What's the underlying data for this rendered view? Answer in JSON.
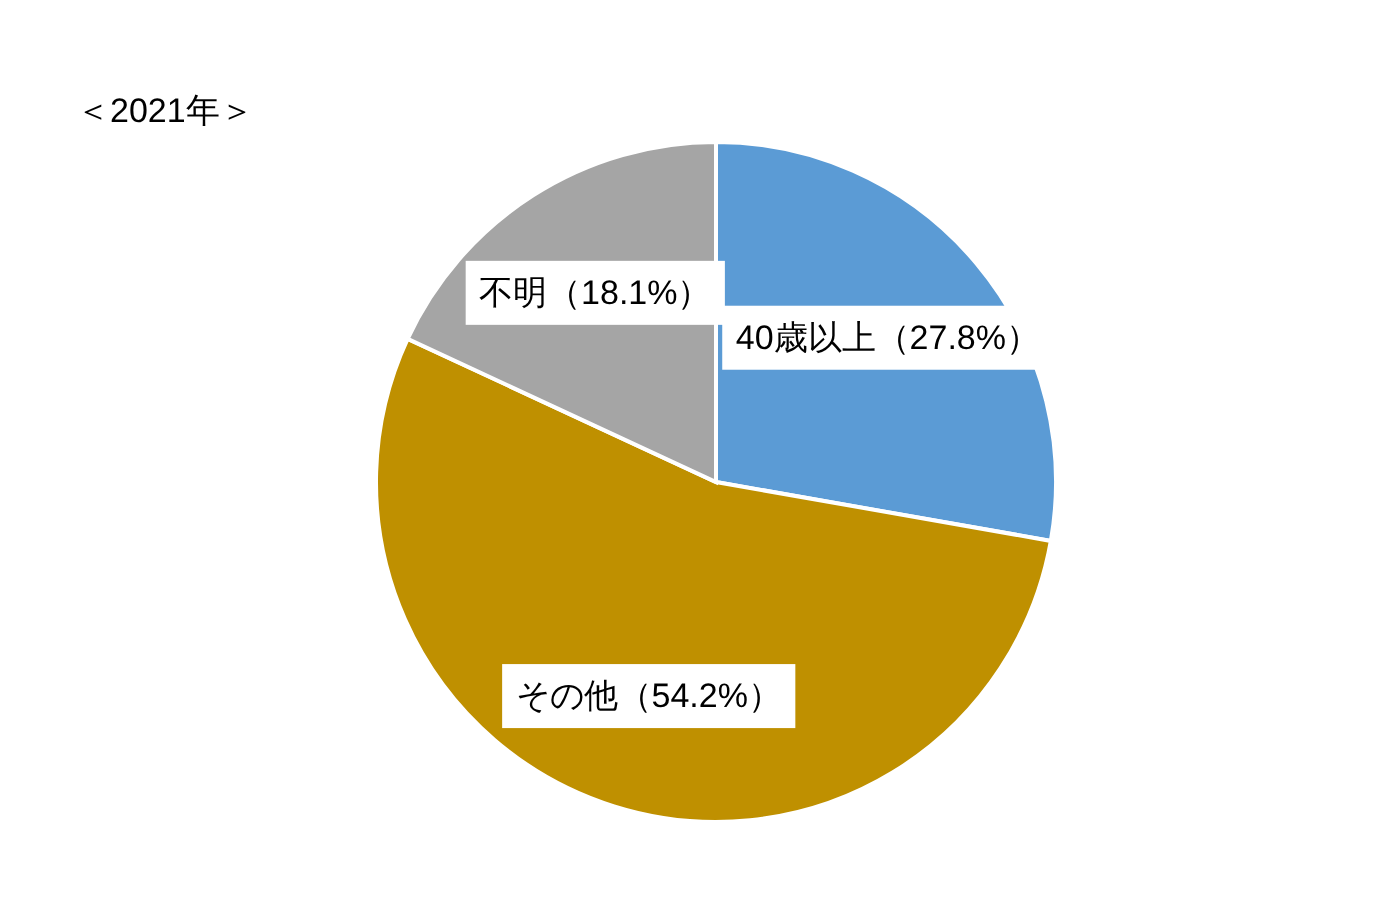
{
  "chart_data": {
    "type": "pie",
    "title": "＜2021年＞",
    "categories": [
      "40歳以上",
      "その他",
      "不明"
    ],
    "values": [
      27.8,
      54.2,
      18.1
    ],
    "value_labels": [
      "（27.8%）",
      "（54.2%）",
      "（18.1%）"
    ],
    "colors": [
      "#5b9bd5",
      "#bf9000",
      "#a5a5a5"
    ],
    "legend": false
  }
}
